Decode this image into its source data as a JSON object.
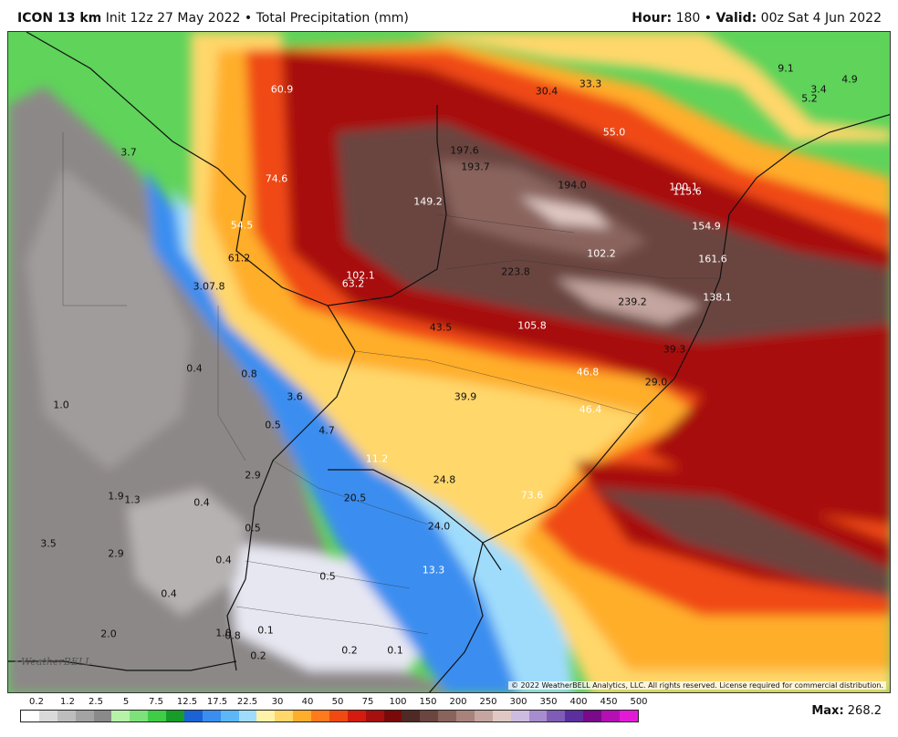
{
  "header": {
    "model": "ICON 13 km",
    "init": "Init 12z 27 May 2022",
    "bullet": "•",
    "product": "Total Precipitation (mm)",
    "hour_label": "Hour:",
    "hour_value": "180",
    "valid_label": "Valid:",
    "valid_value": "00z Sat 4 Jun 2022"
  },
  "map": {
    "copyright": "© 2022 WeatherBELL Analytics, LLC. All rights reserved. License required for commercial distribution.",
    "logo_icon": "weatherbell-logo-icon",
    "logo_text": "WeatherBELL",
    "labels": [
      {
        "text": "60.9",
        "tone": "light"
      },
      {
        "text": "30.4",
        "tone": "dark"
      },
      {
        "text": "33.3",
        "tone": "dark"
      },
      {
        "text": "9.1",
        "tone": "dark"
      },
      {
        "text": "3.4",
        "tone": "dark"
      },
      {
        "text": "4.9",
        "tone": "dark"
      },
      {
        "text": "5.2",
        "tone": "dark"
      },
      {
        "text": "55.0",
        "tone": "light"
      },
      {
        "text": "197.6",
        "tone": "dark"
      },
      {
        "text": "193.7",
        "tone": "dark"
      },
      {
        "text": "3.7",
        "tone": "dark"
      },
      {
        "text": "74.6",
        "tone": "light"
      },
      {
        "text": "194.0",
        "tone": "dark"
      },
      {
        "text": "100.1",
        "tone": "light"
      },
      {
        "text": "115.6",
        "tone": "light"
      },
      {
        "text": "149.2",
        "tone": "light"
      },
      {
        "text": "54.5",
        "tone": "light"
      },
      {
        "text": "154.9",
        "tone": "light"
      },
      {
        "text": "102.2",
        "tone": "light"
      },
      {
        "text": "61.2",
        "tone": "dark"
      },
      {
        "text": "161.6",
        "tone": "light"
      },
      {
        "text": "223.8",
        "tone": "dark"
      },
      {
        "text": "102.1",
        "tone": "light"
      },
      {
        "text": "63.2",
        "tone": "light"
      },
      {
        "text": "3.07.8",
        "tone": "dark"
      },
      {
        "text": "239.2",
        "tone": "dark"
      },
      {
        "text": "138.1",
        "tone": "light"
      },
      {
        "text": "43.5",
        "tone": "dark"
      },
      {
        "text": "105.8",
        "tone": "light"
      },
      {
        "text": "39.3",
        "tone": "dark"
      },
      {
        "text": "0.4",
        "tone": "dark"
      },
      {
        "text": "0.8",
        "tone": "dark"
      },
      {
        "text": "46.8",
        "tone": "light"
      },
      {
        "text": "29.0",
        "tone": "dark"
      },
      {
        "text": "3.6",
        "tone": "dark"
      },
      {
        "text": "39.9",
        "tone": "dark"
      },
      {
        "text": "1.0",
        "tone": "dark"
      },
      {
        "text": "46.4",
        "tone": "light"
      },
      {
        "text": "0.5",
        "tone": "dark"
      },
      {
        "text": "4.7",
        "tone": "dark"
      },
      {
        "text": "11.2",
        "tone": "light"
      },
      {
        "text": "2.9",
        "tone": "dark"
      },
      {
        "text": "24.8",
        "tone": "dark"
      },
      {
        "text": "1.9",
        "tone": "dark"
      },
      {
        "text": "1.3",
        "tone": "dark"
      },
      {
        "text": "0.4",
        "tone": "dark"
      },
      {
        "text": "20.5",
        "tone": "dark"
      },
      {
        "text": "73.6",
        "tone": "light"
      },
      {
        "text": "0.5",
        "tone": "dark"
      },
      {
        "text": "24.0",
        "tone": "dark"
      },
      {
        "text": "3.5",
        "tone": "dark"
      },
      {
        "text": "2.9",
        "tone": "dark"
      },
      {
        "text": "0.4",
        "tone": "dark"
      },
      {
        "text": "13.3",
        "tone": "light"
      },
      {
        "text": "0.5",
        "tone": "dark"
      },
      {
        "text": "0.4",
        "tone": "dark"
      },
      {
        "text": "2.0",
        "tone": "dark"
      },
      {
        "text": "1.0",
        "tone": "dark"
      },
      {
        "text": "0.8",
        "tone": "dark"
      },
      {
        "text": "0.1",
        "tone": "dark"
      },
      {
        "text": "0.2",
        "tone": "dark"
      },
      {
        "text": "0.2",
        "tone": "dark"
      },
      {
        "text": "0.1",
        "tone": "dark"
      }
    ]
  },
  "legend": {
    "ticks": [
      "0.2",
      "1.2",
      "2.5",
      "5",
      "7.5",
      "12.5",
      "17.5",
      "22.5",
      "30",
      "40",
      "50",
      "75",
      "100",
      "150",
      "200",
      "250",
      "300",
      "350",
      "400",
      "450",
      "500"
    ],
    "colors": [
      "#ffffff",
      "#d9d9d9",
      "#bdbdbd",
      "#a3a3a3",
      "#8a8a8a",
      "#b7f2a8",
      "#7ee27a",
      "#3fcc46",
      "#169c28",
      "#1b62d6",
      "#3a8ef0",
      "#5db7f7",
      "#9fdcfc",
      "#fff3a8",
      "#ffd76a",
      "#ffae2b",
      "#ff7a1a",
      "#f04a12",
      "#d41b0f",
      "#a80f0f",
      "#7a0a0a",
      "#4f2a25",
      "#6b4540",
      "#8a635d",
      "#a8837c",
      "#c4a59f",
      "#e0c9c4",
      "#cdbbe0",
      "#a78ccf",
      "#7f5cb8",
      "#5c2f9e",
      "#7a0a8a",
      "#b30fb3",
      "#e21ad8"
    ],
    "max_label": "Max:",
    "max_value": "268.2"
  }
}
